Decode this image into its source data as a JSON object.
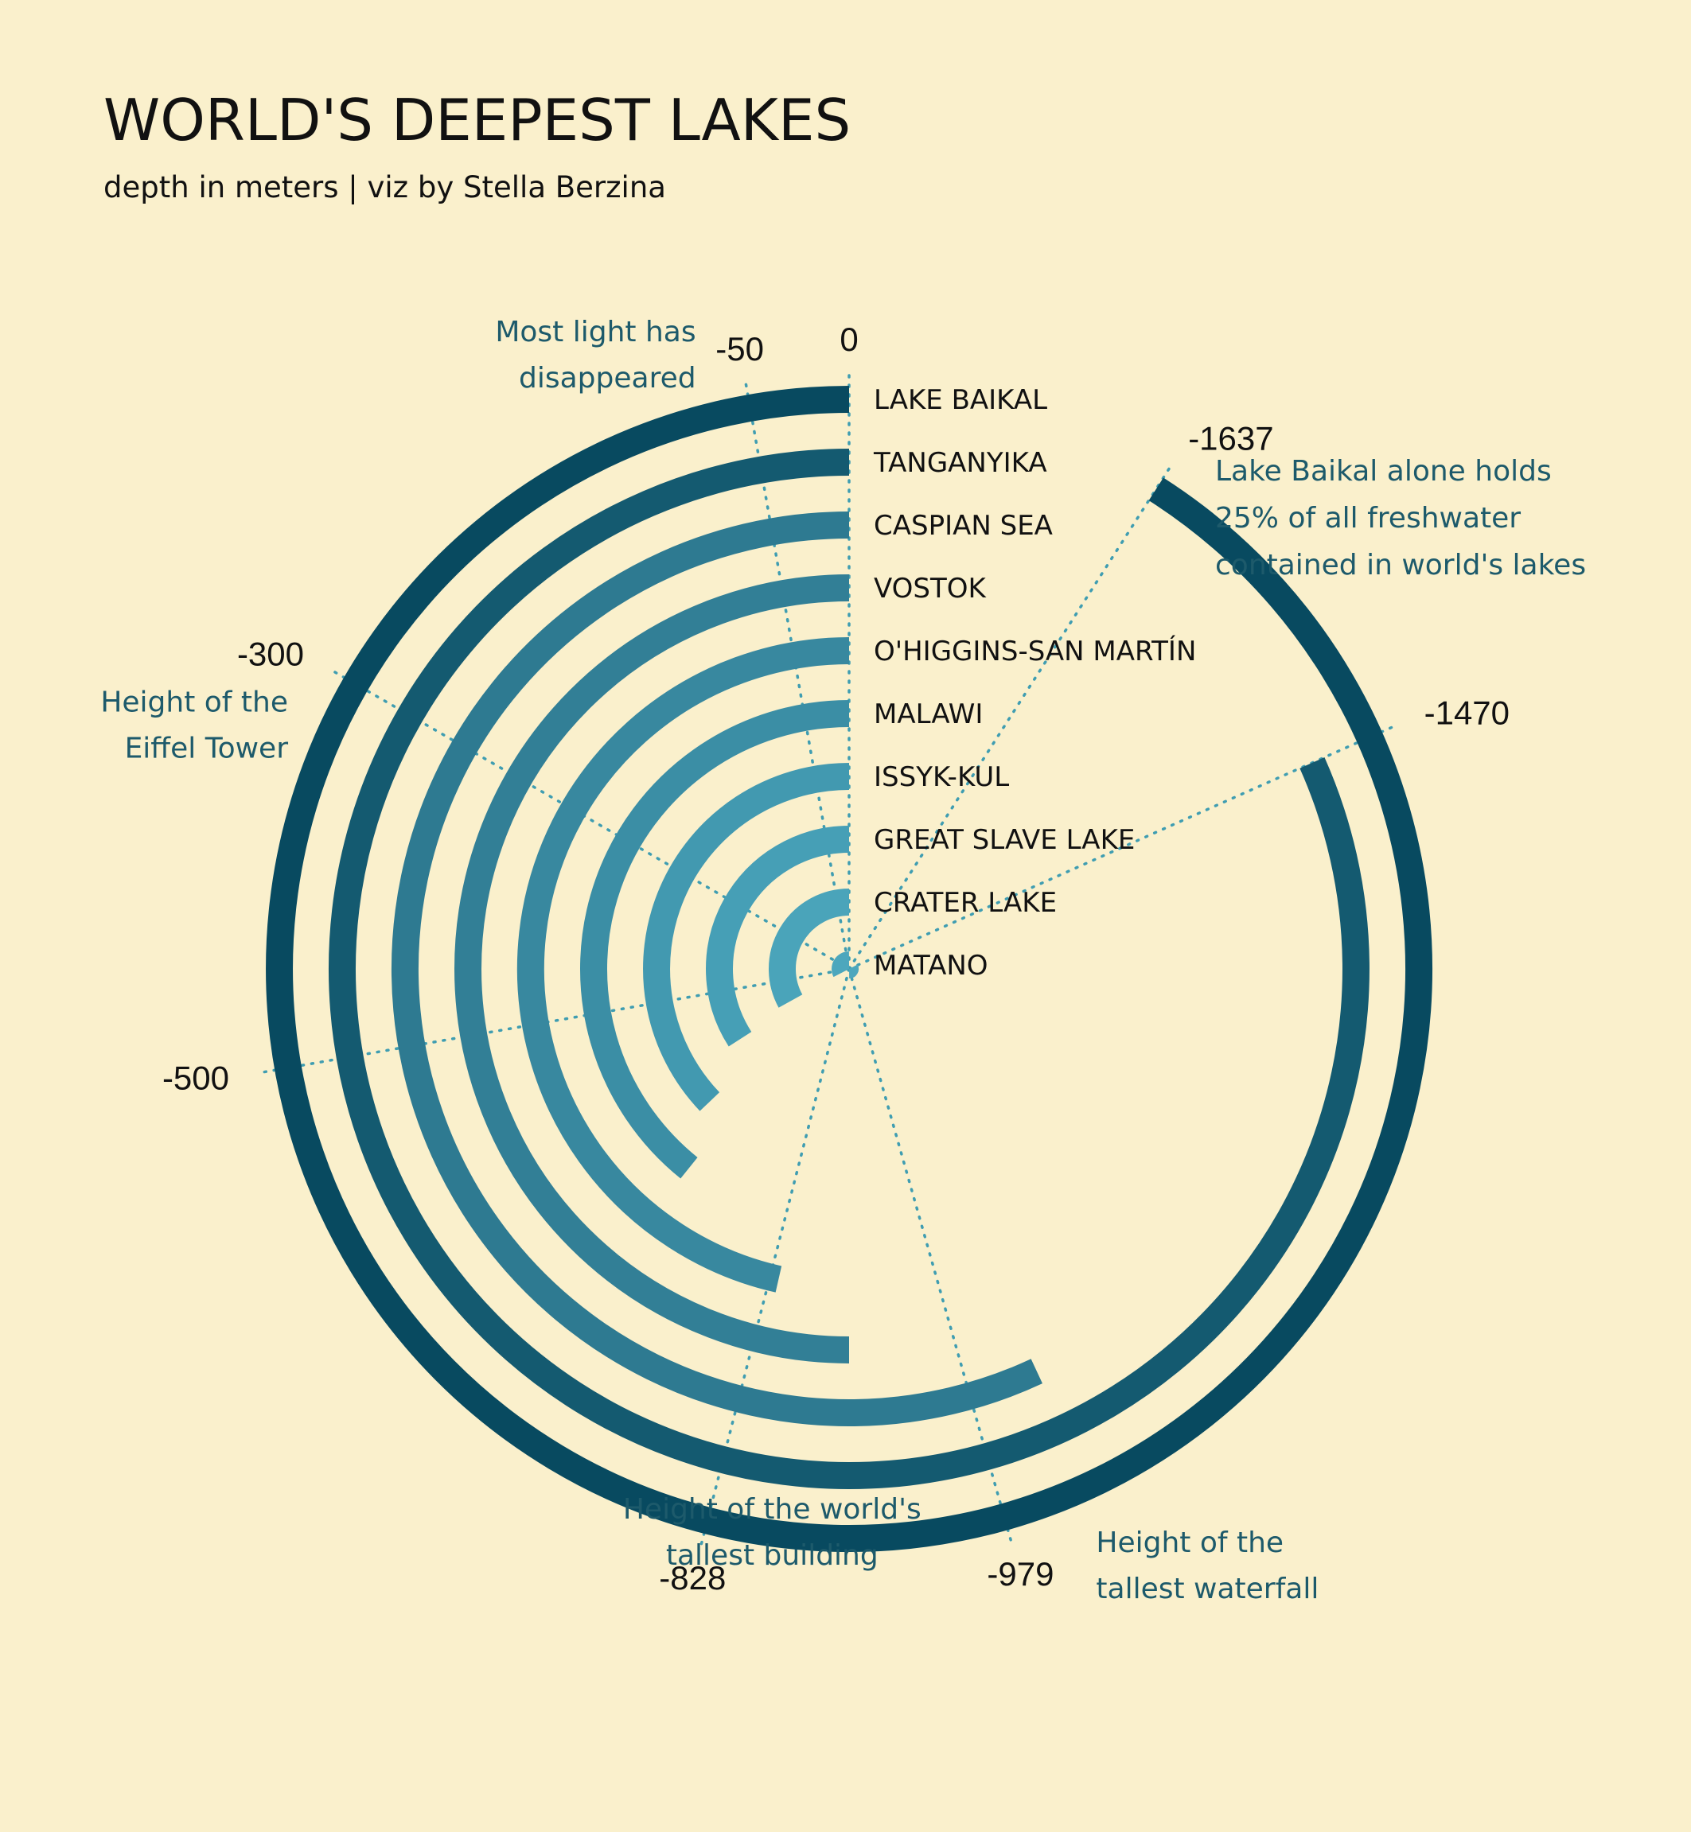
{
  "title": "WORLD'S DEEPEST LAKES",
  "subtitle": "depth in meters | viz by Stella Berzina",
  "chart_data": {
    "type": "radial-bar",
    "title": "WORLD'S DEEPEST LAKES",
    "subtitle": "depth in meters | viz by Stella Berzina",
    "unit": "meters",
    "full_circle_depth": -1800,
    "categories": [
      "LAKE BAIKAL",
      "TANGANYIKA",
      "CASPIAN SEA",
      "VOSTOK",
      "O'HIGGINS-SAN MARTÍN",
      "MALAWI",
      "ISSYK-KUL",
      "GREAT SLAVE LAKE",
      "CRATER LAKE",
      "MATANO"
    ],
    "values": [
      -1637,
      -1470,
      -1025,
      -900,
      -836,
      -706,
      -668,
      -614,
      -594,
      -590
    ],
    "colors": [
      "#084a60",
      "#145a70",
      "#2e7a91",
      "#327f96",
      "#38889f",
      "#3b8ea5",
      "#4299b0",
      "#469fb6",
      "#4aa4ba",
      "#4da7bd"
    ],
    "reference_lines": [
      {
        "value": 0,
        "label": "0",
        "annotation": []
      },
      {
        "value": -50,
        "label": "-50",
        "annotation": [
          "Most light has",
          "disappeared"
        ]
      },
      {
        "value": -300,
        "label": "-300",
        "annotation": [
          "Height of the",
          "Eiffel Tower"
        ]
      },
      {
        "value": -500,
        "label": "-500",
        "annotation": []
      },
      {
        "value": -828,
        "label": "-828",
        "annotation": [
          "Height of the world's",
          "tallest building"
        ]
      },
      {
        "value": -979,
        "label": "-979",
        "annotation": [
          "Height of the",
          "tallest waterfall"
        ]
      },
      {
        "value": -1470,
        "label": "-1470",
        "annotation": []
      },
      {
        "value": -1637,
        "label": "-1637",
        "annotation": []
      }
    ],
    "note": [
      "Lake Baikal alone holds",
      "25% of all freshwater",
      "contained in world's lakes"
    ]
  }
}
